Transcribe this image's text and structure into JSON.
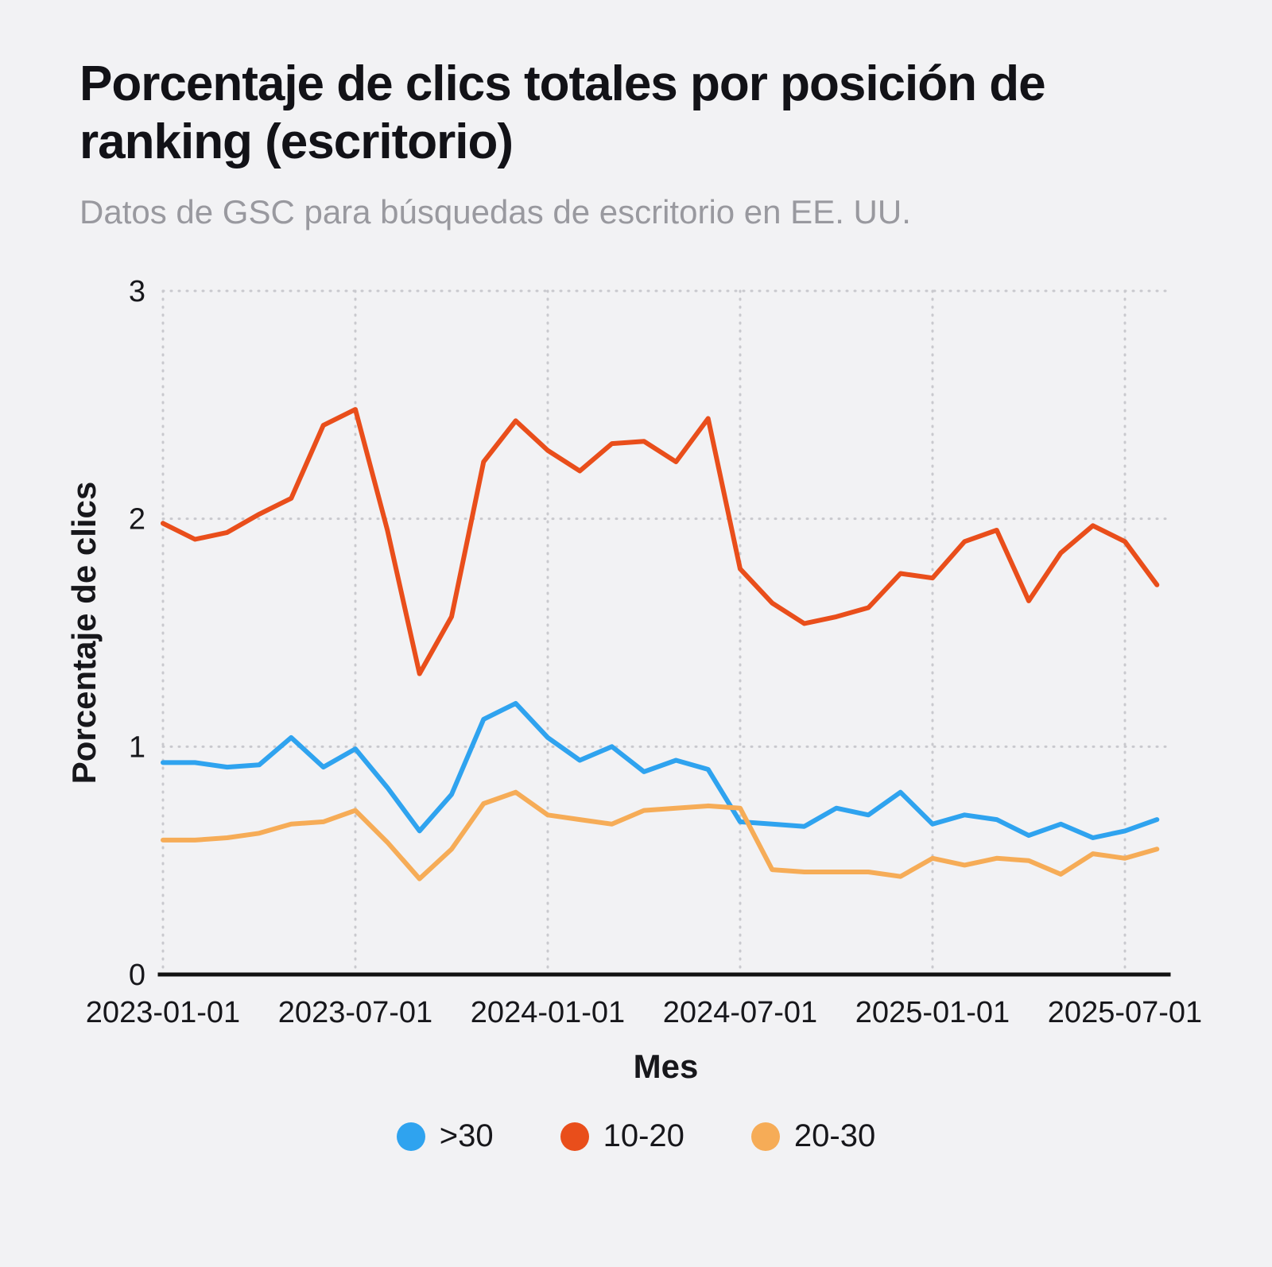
{
  "chart_data": {
    "type": "line",
    "title": "Porcentaje de clics totales por posición de ranking (escritorio)",
    "subtitle": "Datos de GSC para búsquedas de escritorio en EE. UU.",
    "xlabel": "Mes",
    "ylabel": "Porcentaje de clics",
    "ylim": [
      0,
      3
    ],
    "y_ticks": [
      0,
      1,
      2,
      3
    ],
    "grid": "dotted",
    "legend_position": "bottom",
    "x": [
      "2023-01-01",
      "2023-02-01",
      "2023-03-01",
      "2023-04-01",
      "2023-05-01",
      "2023-06-01",
      "2023-07-01",
      "2023-08-01",
      "2023-09-01",
      "2023-10-01",
      "2023-11-01",
      "2023-12-01",
      "2024-01-01",
      "2024-02-01",
      "2024-03-01",
      "2024-04-01",
      "2024-05-01",
      "2024-06-01",
      "2024-07-01",
      "2024-08-01",
      "2024-09-01",
      "2024-10-01",
      "2024-11-01",
      "2024-12-01",
      "2025-01-01",
      "2025-02-01",
      "2025-03-01",
      "2025-04-01",
      "2025-05-01",
      "2025-06-01",
      "2025-07-01",
      "2025-08-01"
    ],
    "x_tick_labels": [
      "2023-01-01",
      "2023-07-01",
      "2024-01-01",
      "2024-07-01",
      "2025-01-01",
      "2025-07-01"
    ],
    "series": [
      {
        "name": ">30",
        "color": "#2FA3EF",
        "values": [
          0.93,
          0.93,
          0.91,
          0.92,
          1.04,
          0.91,
          0.99,
          0.82,
          0.63,
          0.79,
          1.12,
          1.19,
          1.04,
          0.94,
          1.0,
          0.89,
          0.94,
          0.9,
          0.67,
          0.66,
          0.65,
          0.73,
          0.7,
          0.8,
          0.66,
          0.7,
          0.68,
          0.61,
          0.66,
          0.6,
          0.63,
          0.68
        ]
      },
      {
        "name": "10-20",
        "color": "#E94E1B",
        "values": [
          1.98,
          1.91,
          1.94,
          2.02,
          2.09,
          2.41,
          2.48,
          1.95,
          1.32,
          1.57,
          2.25,
          2.43,
          2.3,
          2.21,
          2.33,
          2.34,
          2.25,
          2.44,
          1.78,
          1.63,
          1.54,
          1.57,
          1.61,
          1.76,
          1.74,
          1.9,
          1.95,
          1.64,
          1.85,
          1.97,
          1.9,
          1.71
        ]
      },
      {
        "name": "20-30",
        "color": "#F6AC57",
        "values": [
          0.59,
          0.59,
          0.6,
          0.62,
          0.66,
          0.67,
          0.72,
          0.58,
          0.42,
          0.55,
          0.75,
          0.8,
          0.7,
          0.68,
          0.66,
          0.72,
          0.73,
          0.74,
          0.73,
          0.46,
          0.45,
          0.45,
          0.45,
          0.43,
          0.51,
          0.48,
          0.51,
          0.5,
          0.44,
          0.53,
          0.51,
          0.55
        ]
      }
    ],
    "colors": {
      "background": "#F2F2F4",
      "grid": "#C9C9CE",
      "axis": "#111111",
      "title": "#121217",
      "subtitle": "#99999F"
    }
  }
}
